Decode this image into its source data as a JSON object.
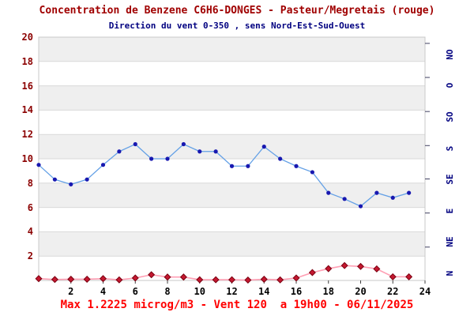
{
  "header": {
    "title": "Concentration de Benzene C6H6-DONGES - Pasteur/Megretais (rouge)",
    "subtitle": "Direction du vent 0-350 , sens Nord-Est-Sud-Ouest"
  },
  "footer": {
    "summary": "Max 1.2225 microg/m3 - Vent 120  a 19h00 - 06/11/2025"
  },
  "colors": {
    "title": "#a00000",
    "subtitle": "#000080",
    "footer": "#ff0000",
    "y_axis_labels": "#8b0000",
    "x_axis_labels": "#000000",
    "right_axis_labels": "#000080",
    "band_gray": "#efefef",
    "grid_line": "#d9d9d9",
    "frame": "#c8c8c8",
    "wind_line": "#63a0e6",
    "wind_marker": "#1818b0",
    "benzene_line": "#ff9fb4",
    "benzene_marker": "#c41830",
    "benzene_marker_edge": "#7a0010",
    "tick": "#404060"
  },
  "chart_data": {
    "type": "line",
    "title": "Concentration de Benzene C6H6-DONGES - Pasteur/Megretais (rouge)",
    "subtitle": "Direction du vent 0-350 , sens Nord-Est-Sud-Ouest",
    "xlabel_hours": [
      2,
      4,
      6,
      8,
      10,
      12,
      14,
      16,
      18,
      20,
      22,
      24
    ],
    "x": [
      0,
      1,
      2,
      3,
      4,
      5,
      6,
      7,
      8,
      9,
      10,
      11,
      12,
      13,
      14,
      15,
      16,
      17,
      18,
      19,
      20,
      21,
      22,
      23
    ],
    "xlim": [
      0,
      24
    ],
    "ylim": [
      0,
      20
    ],
    "y_ticks": [
      2,
      4,
      6,
      8,
      10,
      12,
      14,
      16,
      18,
      20
    ],
    "gray_bands": [
      [
        18,
        20
      ],
      [
        14,
        16
      ],
      [
        10,
        12
      ],
      [
        6,
        8
      ],
      [
        2,
        4
      ]
    ],
    "series": [
      {
        "name": "direction-du-vent",
        "marker": "circle",
        "values": [
          9.5,
          8.3,
          7.9,
          8.3,
          9.5,
          10.6,
          11.2,
          10.0,
          10.0,
          11.2,
          10.6,
          10.6,
          9.4,
          9.4,
          11.0,
          10.0,
          9.4,
          8.9,
          7.2,
          6.7,
          6.1,
          7.2,
          6.8,
          7.2
        ]
      },
      {
        "name": "concentration-benzene-microg-m3",
        "marker": "diamond",
        "values": [
          0.15,
          0.08,
          0.1,
          0.1,
          0.15,
          0.05,
          0.2,
          0.47,
          0.28,
          0.28,
          0.06,
          0.06,
          0.06,
          0.03,
          0.1,
          0.05,
          0.2,
          0.65,
          0.97,
          1.2225,
          1.15,
          0.95,
          0.3,
          0.3
        ]
      }
    ],
    "right_axis": {
      "range_degrees": [
        0,
        350
      ],
      "labels": [
        "NO",
        "O",
        "SO",
        "S",
        "SE",
        "E",
        "NE",
        "N"
      ],
      "label_degrees": [
        315,
        270,
        225,
        180,
        135,
        90,
        45,
        0
      ],
      "tick_degrees": [
        341,
        292,
        243,
        194,
        146,
        97,
        48
      ]
    },
    "legend": "none",
    "grid": "horizontal-bands"
  }
}
